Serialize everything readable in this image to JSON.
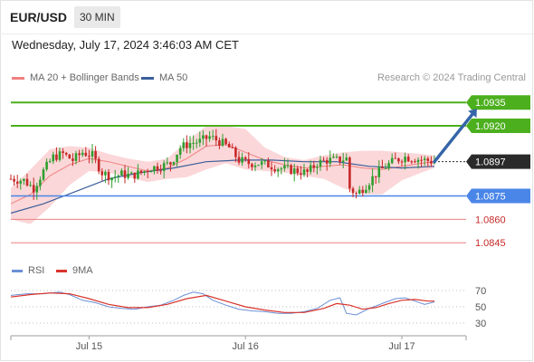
{
  "header": {
    "pair": "EUR/USD",
    "timeframe": "30 MIN"
  },
  "datetime": "Wednesday, July 17, 2024 3:46:03 AM CET",
  "credit": "Research © 2024 Trading Central",
  "legend": {
    "ma20": "MA 20 + Bollinger Bands",
    "ma50": "MA 50",
    "rsi": "RSI",
    "ma9": "9MA"
  },
  "colors": {
    "bull": "#2f9e2f",
    "bear": "#c62828",
    "band": "#f9c9cc",
    "ma20": "#f08080",
    "ma50": "#3b5e9a",
    "resistance": "#4caf1e",
    "support": "#4a86e8",
    "target": "#ec8080",
    "current": "#2a2a2a",
    "arrow": "#3565a8",
    "rsi": "#6b8fd6",
    "rsi_ma": "#d9342b"
  },
  "chart_data": [
    {
      "type": "candlestick",
      "ylim": [
        1.0837,
        1.0945
      ],
      "levels": [
        {
          "value": 1.0935,
          "label": "1.0935",
          "kind": "resistance"
        },
        {
          "value": 1.092,
          "label": "1.0920",
          "kind": "resistance"
        },
        {
          "value": 1.0897,
          "label": "1.0897",
          "kind": "current"
        },
        {
          "value": 1.0875,
          "label": "1.0875",
          "kind": "support"
        },
        {
          "value": 1.086,
          "label": "1.0860",
          "kind": "target"
        },
        {
          "value": 1.0845,
          "label": "1.0845",
          "kind": "target"
        }
      ],
      "x_ticks": [
        {
          "label": "Jul 15",
          "index": 24
        },
        {
          "label": "Jul 16",
          "index": 72
        },
        {
          "label": "Jul 17",
          "index": 120
        }
      ],
      "close_path": [
        [
          0,
          1.0886
        ],
        [
          4,
          1.0885
        ],
        [
          7,
          1.088
        ],
        [
          10,
          1.0891
        ],
        [
          13,
          1.09
        ],
        [
          16,
          1.0902
        ],
        [
          19,
          1.0898
        ],
        [
          22,
          1.0903
        ],
        [
          25,
          1.0901
        ],
        [
          28,
          1.089
        ],
        [
          31,
          1.0887
        ],
        [
          34,
          1.0889
        ],
        [
          37,
          1.0888
        ],
        [
          40,
          1.089
        ],
        [
          43,
          1.0893
        ],
        [
          46,
          1.0894
        ],
        [
          49,
          1.0896
        ],
        [
          52,
          1.0906
        ],
        [
          55,
          1.0909
        ],
        [
          58,
          1.091
        ],
        [
          61,
          1.0913
        ],
        [
          64,
          1.091
        ],
        [
          67,
          1.0906
        ],
        [
          70,
          1.0898
        ],
        [
          73,
          1.0896
        ],
        [
          76,
          1.0896
        ],
        [
          79,
          1.0895
        ],
        [
          82,
          1.0893
        ],
        [
          85,
          1.0892
        ],
        [
          88,
          1.0891
        ],
        [
          91,
          1.089
        ],
        [
          94,
          1.0896
        ],
        [
          97,
          1.0898
        ],
        [
          100,
          1.0898
        ],
        [
          103,
          1.0899
        ],
        [
          104,
          1.088
        ],
        [
          106,
          1.0876
        ],
        [
          109,
          1.0882
        ],
        [
          112,
          1.0889
        ],
        [
          115,
          1.0894
        ],
        [
          118,
          1.0898
        ],
        [
          121,
          1.09
        ],
        [
          124,
          1.0899
        ],
        [
          127,
          1.0898
        ],
        [
          130,
          1.0897
        ]
      ],
      "ma20_path": [
        [
          0,
          1.087
        ],
        [
          6,
          1.0876
        ],
        [
          12,
          1.0888
        ],
        [
          18,
          1.0895
        ],
        [
          24,
          1.0899
        ],
        [
          30,
          1.0897
        ],
        [
          36,
          1.0894
        ],
        [
          42,
          1.0891
        ],
        [
          48,
          1.0893
        ],
        [
          54,
          1.0899
        ],
        [
          60,
          1.0907
        ],
        [
          66,
          1.0908
        ],
        [
          72,
          1.0903
        ],
        [
          78,
          1.0898
        ],
        [
          84,
          1.0895
        ],
        [
          90,
          1.0893
        ],
        [
          96,
          1.0894
        ],
        [
          102,
          1.0895
        ],
        [
          108,
          1.0893
        ],
        [
          114,
          1.0892
        ],
        [
          120,
          1.0894
        ],
        [
          126,
          1.0896
        ],
        [
          130,
          1.0897
        ]
      ],
      "bb_upper": [
        [
          0,
          1.088
        ],
        [
          6,
          1.0892
        ],
        [
          12,
          1.0905
        ],
        [
          18,
          1.0907
        ],
        [
          24,
          1.0906
        ],
        [
          30,
          1.0902
        ],
        [
          36,
          1.0899
        ],
        [
          42,
          1.0897
        ],
        [
          48,
          1.0899
        ],
        [
          54,
          1.091
        ],
        [
          60,
          1.092
        ],
        [
          66,
          1.092
        ],
        [
          72,
          1.0918
        ],
        [
          78,
          1.0906
        ],
        [
          84,
          1.09
        ],
        [
          90,
          1.0898
        ],
        [
          96,
          1.0901
        ],
        [
          102,
          1.0903
        ],
        [
          108,
          1.0904
        ],
        [
          114,
          1.0904
        ],
        [
          120,
          1.0903
        ],
        [
          126,
          1.0902
        ],
        [
          130,
          1.0901
        ]
      ],
      "bb_lower": [
        [
          0,
          1.086
        ],
        [
          6,
          1.0857
        ],
        [
          12,
          1.0868
        ],
        [
          18,
          1.0882
        ],
        [
          24,
          1.0891
        ],
        [
          30,
          1.089
        ],
        [
          36,
          1.0887
        ],
        [
          42,
          1.0884
        ],
        [
          48,
          1.0886
        ],
        [
          54,
          1.0887
        ],
        [
          60,
          1.0892
        ],
        [
          66,
          1.0896
        ],
        [
          72,
          1.0892
        ],
        [
          78,
          1.0891
        ],
        [
          84,
          1.089
        ],
        [
          90,
          1.0888
        ],
        [
          96,
          1.0886
        ],
        [
          102,
          1.088
        ],
        [
          108,
          1.0876
        ],
        [
          114,
          1.0876
        ],
        [
          120,
          1.0885
        ],
        [
          126,
          1.089
        ],
        [
          130,
          1.0893
        ]
      ],
      "ma50_path": [
        [
          0,
          1.0864
        ],
        [
          10,
          1.087
        ],
        [
          20,
          1.0878
        ],
        [
          30,
          1.0886
        ],
        [
          40,
          1.089
        ],
        [
          50,
          1.0893
        ],
        [
          60,
          1.0897
        ],
        [
          70,
          1.0898
        ],
        [
          80,
          1.0898
        ],
        [
          90,
          1.0897
        ],
        [
          100,
          1.0897
        ],
        [
          110,
          1.0894
        ],
        [
          120,
          1.0893
        ],
        [
          130,
          1.0894
        ]
      ],
      "forecast": {
        "from": [
          130,
          1.0897
        ],
        "to": [
          143,
          1.0931
        ]
      }
    },
    {
      "type": "line",
      "ylim": [
        20,
        80
      ],
      "y_ticks": [
        70,
        50,
        30
      ],
      "series": [
        {
          "name": "RSI",
          "points": [
            [
              0,
              64
            ],
            [
              5,
              66
            ],
            [
              10,
              66
            ],
            [
              15,
              68
            ],
            [
              18,
              65
            ],
            [
              22,
              58
            ],
            [
              26,
              55
            ],
            [
              30,
              50
            ],
            [
              34,
              48
            ],
            [
              38,
              47
            ],
            [
              42,
              50
            ],
            [
              46,
              52
            ],
            [
              50,
              58
            ],
            [
              53,
              64
            ],
            [
              56,
              68
            ],
            [
              59,
              66
            ],
            [
              62,
              58
            ],
            [
              66,
              52
            ],
            [
              70,
              47
            ],
            [
              74,
              45
            ],
            [
              78,
              44
            ],
            [
              82,
              42
            ],
            [
              86,
              42
            ],
            [
              90,
              44
            ],
            [
              94,
              48
            ],
            [
              98,
              58
            ],
            [
              101,
              61
            ],
            [
              103,
              42
            ],
            [
              106,
              40
            ],
            [
              110,
              48
            ],
            [
              114,
              54
            ],
            [
              118,
              60
            ],
            [
              121,
              61
            ],
            [
              124,
              57
            ],
            [
              127,
              53
            ],
            [
              130,
              56
            ]
          ]
        },
        {
          "name": "9MA",
          "points": [
            [
              0,
              62
            ],
            [
              6,
              65
            ],
            [
              12,
              67
            ],
            [
              18,
              66
            ],
            [
              24,
              60
            ],
            [
              30,
              53
            ],
            [
              36,
              49
            ],
            [
              42,
              49
            ],
            [
              48,
              53
            ],
            [
              54,
              60
            ],
            [
              60,
              64
            ],
            [
              66,
              57
            ],
            [
              72,
              50
            ],
            [
              78,
              46
            ],
            [
              84,
              43
            ],
            [
              90,
              43
            ],
            [
              96,
              48
            ],
            [
              100,
              54
            ],
            [
              104,
              52
            ],
            [
              108,
              47
            ],
            [
              112,
              49
            ],
            [
              116,
              54
            ],
            [
              120,
              58
            ],
            [
              124,
              59
            ],
            [
              128,
              57
            ],
            [
              130,
              57
            ]
          ]
        }
      ]
    }
  ]
}
